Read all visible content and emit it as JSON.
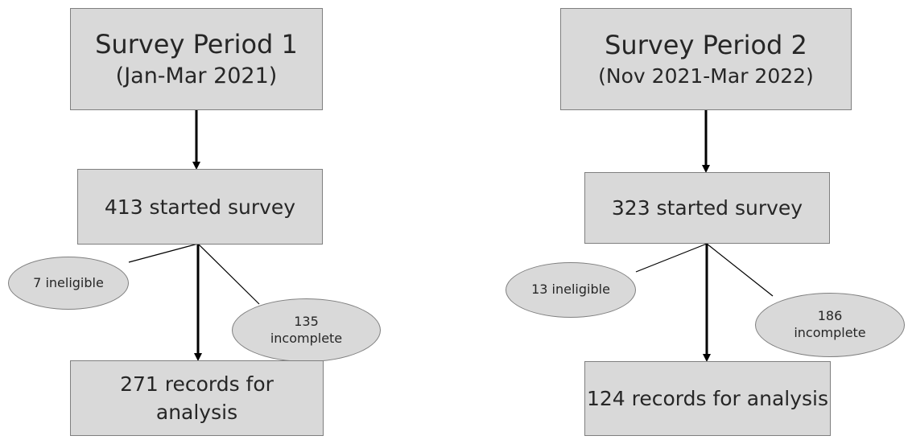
{
  "flows": [
    {
      "period": {
        "title": "Survey Period 1",
        "subtitle": "(Jan-Mar 2021)"
      },
      "started": "413 started survey",
      "ineligible": "7 ineligible",
      "incomplete": {
        "line1": "135",
        "line2": "incomplete"
      },
      "analysis": {
        "line1": "271 records for",
        "line2": "analysis"
      }
    },
    {
      "period": {
        "title": "Survey Period 2",
        "subtitle": "(Nov 2021-Mar 2022)"
      },
      "started": "323 started survey",
      "ineligible": "13 ineligible",
      "incomplete": {
        "line1": "186",
        "line2": "incomplete"
      },
      "analysis": {
        "line1": "124 records for analysis",
        "line2": ""
      }
    }
  ],
  "colors": {
    "box_fill": "#d9d9d9",
    "box_border": "#7f7f7f",
    "arrow": "#000000",
    "text": "#262626"
  }
}
